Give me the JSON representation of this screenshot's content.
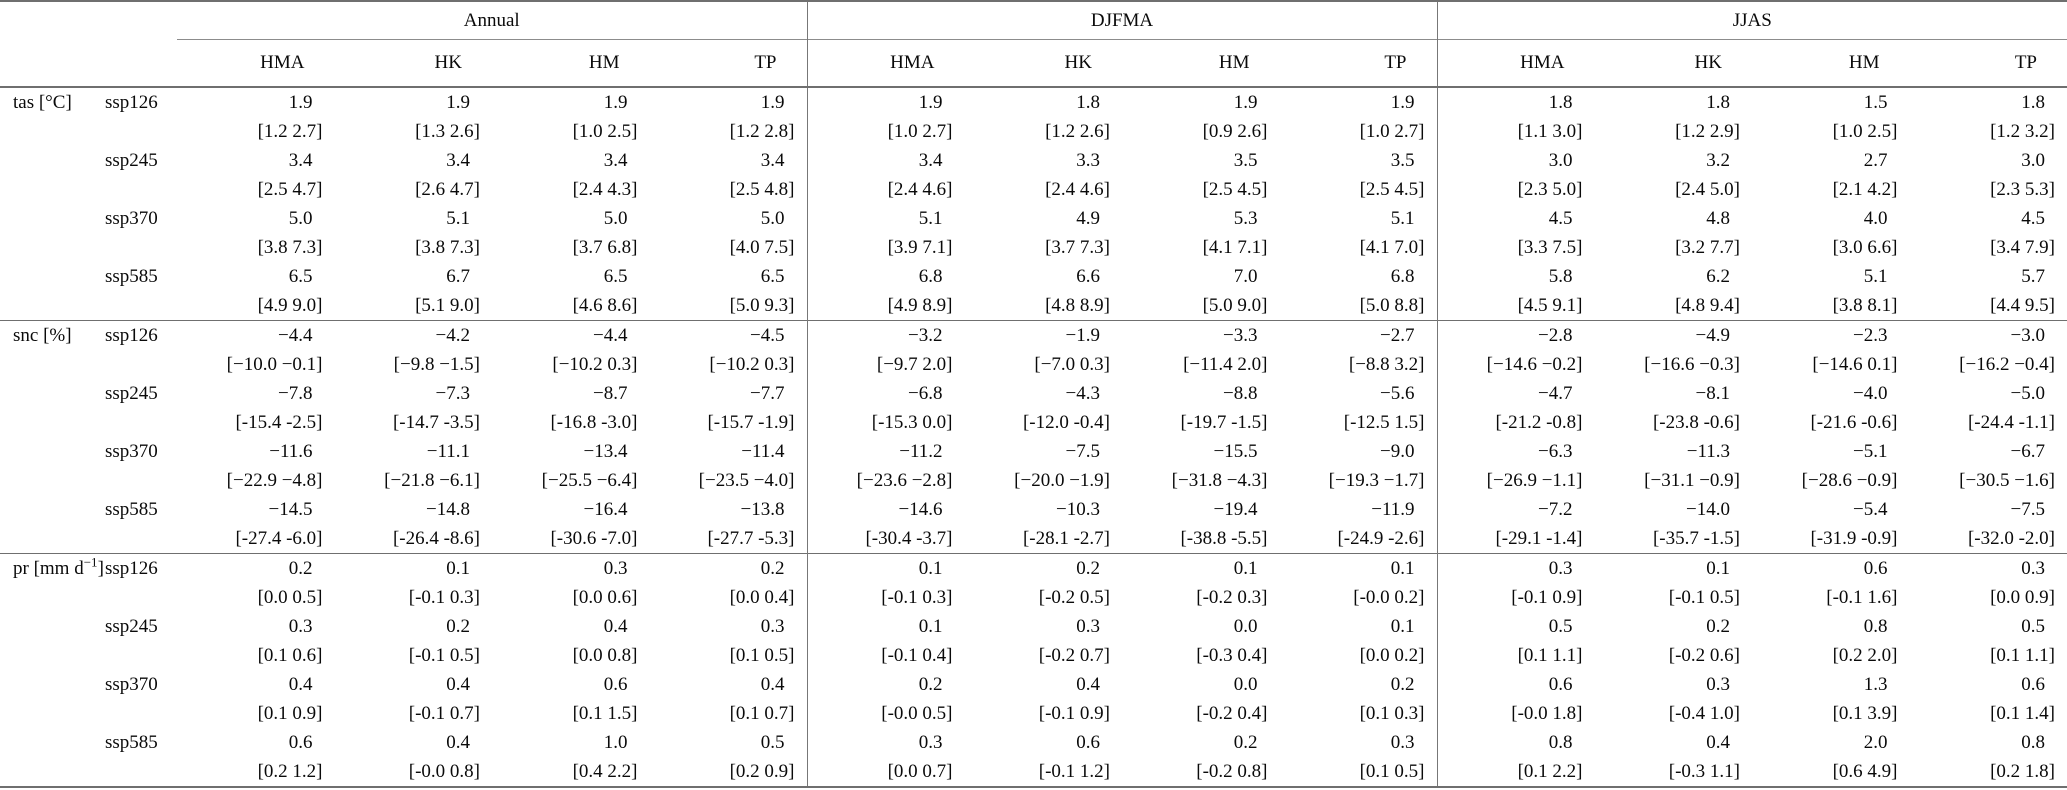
{
  "table": {
    "season_groups": [
      "Annual",
      "DJFMA",
      "JJAS"
    ],
    "regions": [
      "HMA",
      "HK",
      "HM",
      "TP"
    ],
    "sections": [
      {
        "variable": {
          "main": "tas [°C]",
          "sup": "",
          "post": ""
        },
        "scenarios": [
          {
            "name": "ssp126",
            "cells": [
              {
                "v": "1.9",
                "r": "[1.2 2.7]"
              },
              {
                "v": "1.9",
                "r": "[1.3 2.6]"
              },
              {
                "v": "1.9",
                "r": "[1.0 2.5]"
              },
              {
                "v": "1.9",
                "r": "[1.2 2.8]"
              },
              {
                "v": "1.9",
                "r": "[1.0 2.7]"
              },
              {
                "v": "1.8",
                "r": "[1.2 2.6]"
              },
              {
                "v": "1.9",
                "r": "[0.9 2.6]"
              },
              {
                "v": "1.9",
                "r": "[1.0 2.7]"
              },
              {
                "v": "1.8",
                "r": "[1.1 3.0]"
              },
              {
                "v": "1.8",
                "r": "[1.2 2.9]"
              },
              {
                "v": "1.5",
                "r": "[1.0 2.5]"
              },
              {
                "v": "1.8",
                "r": "[1.2 3.2]"
              }
            ]
          },
          {
            "name": "ssp245",
            "cells": [
              {
                "v": "3.4",
                "r": "[2.5 4.7]"
              },
              {
                "v": "3.4",
                "r": "[2.6 4.7]"
              },
              {
                "v": "3.4",
                "r": "[2.4 4.3]"
              },
              {
                "v": "3.4",
                "r": "[2.5 4.8]"
              },
              {
                "v": "3.4",
                "r": "[2.4 4.6]"
              },
              {
                "v": "3.3",
                "r": "[2.4 4.6]"
              },
              {
                "v": "3.5",
                "r": "[2.5 4.5]"
              },
              {
                "v": "3.5",
                "r": "[2.5 4.5]"
              },
              {
                "v": "3.0",
                "r": "[2.3 5.0]"
              },
              {
                "v": "3.2",
                "r": "[2.4 5.0]"
              },
              {
                "v": "2.7",
                "r": "[2.1 4.2]"
              },
              {
                "v": "3.0",
                "r": "[2.3 5.3]"
              }
            ]
          },
          {
            "name": "ssp370",
            "cells": [
              {
                "v": "5.0",
                "r": "[3.8 7.3]"
              },
              {
                "v": "5.1",
                "r": "[3.8 7.3]"
              },
              {
                "v": "5.0",
                "r": "[3.7 6.8]"
              },
              {
                "v": "5.0",
                "r": "[4.0 7.5]"
              },
              {
                "v": "5.1",
                "r": "[3.9 7.1]"
              },
              {
                "v": "4.9",
                "r": "[3.7 7.3]"
              },
              {
                "v": "5.3",
                "r": "[4.1 7.1]"
              },
              {
                "v": "5.1",
                "r": "[4.1 7.0]"
              },
              {
                "v": "4.5",
                "r": "[3.3 7.5]"
              },
              {
                "v": "4.8",
                "r": "[3.2 7.7]"
              },
              {
                "v": "4.0",
                "r": "[3.0 6.6]"
              },
              {
                "v": "4.5",
                "r": "[3.4 7.9]"
              }
            ]
          },
          {
            "name": "ssp585",
            "cells": [
              {
                "v": "6.5",
                "r": "[4.9 9.0]"
              },
              {
                "v": "6.7",
                "r": "[5.1 9.0]"
              },
              {
                "v": "6.5",
                "r": "[4.6 8.6]"
              },
              {
                "v": "6.5",
                "r": "[5.0 9.3]"
              },
              {
                "v": "6.8",
                "r": "[4.9 8.9]"
              },
              {
                "v": "6.6",
                "r": "[4.8 8.9]"
              },
              {
                "v": "7.0",
                "r": "[5.0 9.0]"
              },
              {
                "v": "6.8",
                "r": "[5.0 8.8]"
              },
              {
                "v": "5.8",
                "r": "[4.5 9.1]"
              },
              {
                "v": "6.2",
                "r": "[4.8 9.4]"
              },
              {
                "v": "5.1",
                "r": "[3.8 8.1]"
              },
              {
                "v": "5.7",
                "r": "[4.4 9.5]"
              }
            ]
          }
        ]
      },
      {
        "variable": {
          "main": "snc [%]",
          "sup": "",
          "post": ""
        },
        "scenarios": [
          {
            "name": "ssp126",
            "cells": [
              {
                "v": "−4.4",
                "r": "[−10.0 −0.1]"
              },
              {
                "v": "−4.2",
                "r": "[−9.8 −1.5]"
              },
              {
                "v": "−4.4",
                "r": "[−10.2 0.3]"
              },
              {
                "v": "−4.5",
                "r": "[−10.2 0.3]"
              },
              {
                "v": "−3.2",
                "r": "[−9.7 2.0]"
              },
              {
                "v": "−1.9",
                "r": "[−7.0 0.3]"
              },
              {
                "v": "−3.3",
                "r": "[−11.4 2.0]"
              },
              {
                "v": "−2.7",
                "r": "[−8.8 3.2]"
              },
              {
                "v": "−2.8",
                "r": "[−14.6 −0.2]"
              },
              {
                "v": "−4.9",
                "r": "[−16.6 −0.3]"
              },
              {
                "v": "−2.3",
                "r": "[−14.6 0.1]"
              },
              {
                "v": "−3.0",
                "r": "[−16.2 −0.4]"
              }
            ]
          },
          {
            "name": "ssp245",
            "cells": [
              {
                "v": "−7.8",
                "r": "[-15.4 -2.5]"
              },
              {
                "v": "−7.3",
                "r": "[-14.7 -3.5]"
              },
              {
                "v": "−8.7",
                "r": "[-16.8 -3.0]"
              },
              {
                "v": "−7.7",
                "r": "[-15.7 -1.9]"
              },
              {
                "v": "−6.8",
                "r": "[-15.3 0.0]"
              },
              {
                "v": "−4.3",
                "r": "[-12.0 -0.4]"
              },
              {
                "v": "−8.8",
                "r": "[-19.7 -1.5]"
              },
              {
                "v": "−5.6",
                "r": "[-12.5 1.5]"
              },
              {
                "v": "−4.7",
                "r": "[-21.2 -0.8]"
              },
              {
                "v": "−8.1",
                "r": "[-23.8 -0.6]"
              },
              {
                "v": "−4.0",
                "r": "[-21.6 -0.6]"
              },
              {
                "v": "−5.0",
                "r": "[-24.4 -1.1]"
              }
            ]
          },
          {
            "name": "ssp370",
            "cells": [
              {
                "v": "−11.6",
                "r": "[−22.9 −4.8]"
              },
              {
                "v": "−11.1",
                "r": "[−21.8 −6.1]"
              },
              {
                "v": "−13.4",
                "r": "[−25.5 −6.4]"
              },
              {
                "v": "−11.4",
                "r": "[−23.5 −4.0]"
              },
              {
                "v": "−11.2",
                "r": "[−23.6 −2.8]"
              },
              {
                "v": "−7.5",
                "r": "[−20.0 −1.9]"
              },
              {
                "v": "−15.5",
                "r": "[−31.8 −4.3]"
              },
              {
                "v": "−9.0",
                "r": "[−19.3 −1.7]"
              },
              {
                "v": "−6.3",
                "r": "[−26.9 −1.1]"
              },
              {
                "v": "−11.3",
                "r": "[−31.1 −0.9]"
              },
              {
                "v": "−5.1",
                "r": "[−28.6 −0.9]"
              },
              {
                "v": "−6.7",
                "r": "[−30.5 −1.6]"
              }
            ]
          },
          {
            "name": "ssp585",
            "cells": [
              {
                "v": "−14.5",
                "r": "[-27.4 -6.0]"
              },
              {
                "v": "−14.8",
                "r": "[-26.4 -8.6]"
              },
              {
                "v": "−16.4",
                "r": "[-30.6 -7.0]"
              },
              {
                "v": "−13.8",
                "r": "[-27.7 -5.3]"
              },
              {
                "v": "−14.6",
                "r": "[-30.4 -3.7]"
              },
              {
                "v": "−10.3",
                "r": "[-28.1 -2.7]"
              },
              {
                "v": "−19.4",
                "r": "[-38.8 -5.5]"
              },
              {
                "v": "−11.9",
                "r": "[-24.9 -2.6]"
              },
              {
                "v": "−7.2",
                "r": "[-29.1 -1.4]"
              },
              {
                "v": "−14.0",
                "r": "[-35.7 -1.5]"
              },
              {
                "v": "−5.4",
                "r": "[-31.9 -0.9]"
              },
              {
                "v": "−7.5",
                "r": "[-32.0 -2.0]"
              }
            ]
          }
        ]
      },
      {
        "variable": {
          "main": "pr [mm d",
          "sup": "−1",
          "post": "]"
        },
        "scenarios": [
          {
            "name": "ssp126",
            "cells": [
              {
                "v": "0.2",
                "r": "[0.0 0.5]"
              },
              {
                "v": "0.1",
                "r": "[-0.1 0.3]"
              },
              {
                "v": "0.3",
                "r": "[0.0 0.6]"
              },
              {
                "v": "0.2",
                "r": "[0.0 0.4]"
              },
              {
                "v": "0.1",
                "r": "[-0.1 0.3]"
              },
              {
                "v": "0.2",
                "r": "[-0.2 0.5]"
              },
              {
                "v": "0.1",
                "r": "[-0.2 0.3]"
              },
              {
                "v": "0.1",
                "r": "[-0.0 0.2]"
              },
              {
                "v": "0.3",
                "r": "[-0.1 0.9]"
              },
              {
                "v": "0.1",
                "r": "[-0.1 0.5]"
              },
              {
                "v": "0.6",
                "r": "[-0.1 1.6]"
              },
              {
                "v": "0.3",
                "r": "[0.0 0.9]"
              }
            ]
          },
          {
            "name": "ssp245",
            "cells": [
              {
                "v": "0.3",
                "r": "[0.1 0.6]"
              },
              {
                "v": "0.2",
                "r": "[-0.1 0.5]"
              },
              {
                "v": "0.4",
                "r": "[0.0 0.8]"
              },
              {
                "v": "0.3",
                "r": "[0.1 0.5]"
              },
              {
                "v": "0.1",
                "r": "[-0.1 0.4]"
              },
              {
                "v": "0.3",
                "r": "[-0.2 0.7]"
              },
              {
                "v": "0.0",
                "r": "[-0.3 0.4]"
              },
              {
                "v": "0.1",
                "r": "[0.0 0.2]"
              },
              {
                "v": "0.5",
                "r": "[0.1 1.1]"
              },
              {
                "v": "0.2",
                "r": "[-0.2 0.6]"
              },
              {
                "v": "0.8",
                "r": "[0.2 2.0]"
              },
              {
                "v": "0.5",
                "r": "[0.1 1.1]"
              }
            ]
          },
          {
            "name": "ssp370",
            "cells": [
              {
                "v": "0.4",
                "r": "[0.1 0.9]"
              },
              {
                "v": "0.4",
                "r": "[-0.1 0.7]"
              },
              {
                "v": "0.6",
                "r": "[0.1 1.5]"
              },
              {
                "v": "0.4",
                "r": "[0.1 0.7]"
              },
              {
                "v": "0.2",
                "r": "[-0.0 0.5]"
              },
              {
                "v": "0.4",
                "r": "[-0.1 0.9]"
              },
              {
                "v": "0.0",
                "r": "[-0.2 0.4]"
              },
              {
                "v": "0.2",
                "r": "[0.1 0.3]"
              },
              {
                "v": "0.6",
                "r": "[-0.0 1.8]"
              },
              {
                "v": "0.3",
                "r": "[-0.4 1.0]"
              },
              {
                "v": "1.3",
                "r": "[0.1 3.9]"
              },
              {
                "v": "0.6",
                "r": "[0.1 1.4]"
              }
            ]
          },
          {
            "name": "ssp585",
            "cells": [
              {
                "v": "0.6",
                "r": "[0.2 1.2]"
              },
              {
                "v": "0.4",
                "r": "[-0.0 0.8]"
              },
              {
                "v": "1.0",
                "r": "[0.4 2.2]"
              },
              {
                "v": "0.5",
                "r": "[0.2 0.9]"
              },
              {
                "v": "0.3",
                "r": "[0.0 0.7]"
              },
              {
                "v": "0.6",
                "r": "[-0.1 1.2]"
              },
              {
                "v": "0.2",
                "r": "[-0.2 0.8]"
              },
              {
                "v": "0.3",
                "r": "[0.1 0.5]"
              },
              {
                "v": "0.8",
                "r": "[0.1 2.2]"
              },
              {
                "v": "0.4",
                "r": "[-0.3 1.1]"
              },
              {
                "v": "2.0",
                "r": "[0.6 4.9]"
              },
              {
                "v": "0.8",
                "r": "[0.2 1.8]"
              }
            ]
          }
        ]
      }
    ]
  }
}
